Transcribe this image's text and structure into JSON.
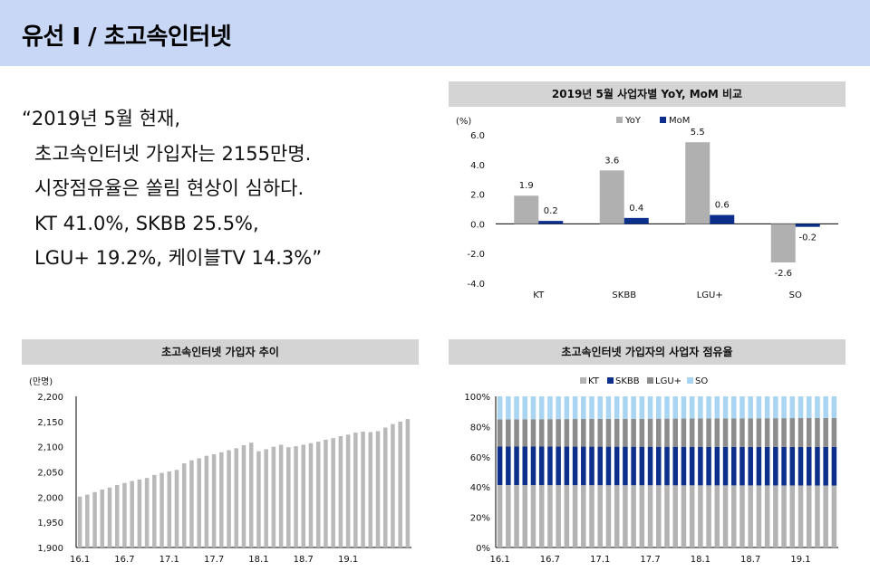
{
  "header": {
    "title": "유선 I / 초고속인터넷"
  },
  "quote": {
    "lines": [
      "“2019년 5월 현재,",
      "초고속인터넷 가입자는 2155만명.",
      "시장점유율은 쏠림 현상이 심하다.",
      "KT 41.0%, SKBB 25.5%,",
      "LGU+ 19.2%, 케이블TV 14.3%”"
    ]
  },
  "chart_data": [
    {
      "type": "bar",
      "title": "2019년 5월 사업자별 YoY, MoM 비교",
      "unit_label": "(%)",
      "categories": [
        "KT",
        "SKBB",
        "LGU+",
        "SO"
      ],
      "series": [
        {
          "name": "YoY",
          "color": "#b0b0b0",
          "values": [
            1.9,
            3.6,
            5.5,
            -2.6
          ],
          "labels": [
            "1.9",
            "3.6",
            "5.5",
            "-2.6"
          ]
        },
        {
          "name": "MoM",
          "color": "#0b2f8a",
          "values": [
            0.2,
            0.4,
            0.6,
            -0.2
          ],
          "labels": [
            "0.2",
            "0.4",
            "0.6",
            "-0.2"
          ]
        }
      ],
      "ylim": [
        -4.0,
        6.0
      ],
      "yticks": [
        "6.0",
        "4.0",
        "2.0",
        "0.0",
        "-2.0",
        "-4.0"
      ],
      "legend": "top-center",
      "grid": false
    },
    {
      "type": "bar",
      "title": "초고속인터넷 가입자 추이",
      "unit_label": "(만명)",
      "ylim": [
        1900,
        2200
      ],
      "yticks": [
        "2,200",
        "2,150",
        "2,100",
        "2,050",
        "2,000",
        "1,950",
        "1,900"
      ],
      "xtick_labels": [
        "16.1",
        "16.7",
        "17.1",
        "17.7",
        "18.1",
        "18.7",
        "19.1"
      ],
      "color": "#b9b9b9",
      "values": [
        2001,
        2005,
        2010,
        2015,
        2019,
        2024,
        2028,
        2032,
        2035,
        2038,
        2044,
        2048,
        2051,
        2054,
        2067,
        2073,
        2077,
        2082,
        2085,
        2089,
        2093,
        2097,
        2103,
        2108,
        2091,
        2095,
        2100,
        2104,
        2099,
        2101,
        2104,
        2107,
        2110,
        2114,
        2117,
        2121,
        2124,
        2128,
        2130,
        2129,
        2131,
        2138,
        2145,
        2150,
        2155
      ],
      "grid": false
    },
    {
      "type": "bar",
      "stacked": true,
      "title": "초고속인터넷 가입자의 사업자 점유율",
      "ylim": [
        0,
        100
      ],
      "yticks": [
        "100%",
        "80%",
        "60%",
        "40%",
        "20%",
        "0%"
      ],
      "xtick_labels": [
        "16.1",
        "16.7",
        "17.1",
        "17.7",
        "18.1",
        "18.7",
        "19.1"
      ],
      "periods": 41,
      "series": [
        {
          "name": "KT",
          "color": "#b3b3b3",
          "value_start": 41.3,
          "value_end": 41.0
        },
        {
          "name": "SKBB",
          "color": "#0d2f8c",
          "value_start": 25.5,
          "value_end": 25.5
        },
        {
          "name": "LGU+",
          "color": "#8c8c8c",
          "value_start": 18.0,
          "value_end": 19.2
        },
        {
          "name": "SO",
          "color": "#a9d4f2",
          "value_start": 15.2,
          "value_end": 14.3
        }
      ],
      "legend": "top-center",
      "grid": false
    }
  ]
}
